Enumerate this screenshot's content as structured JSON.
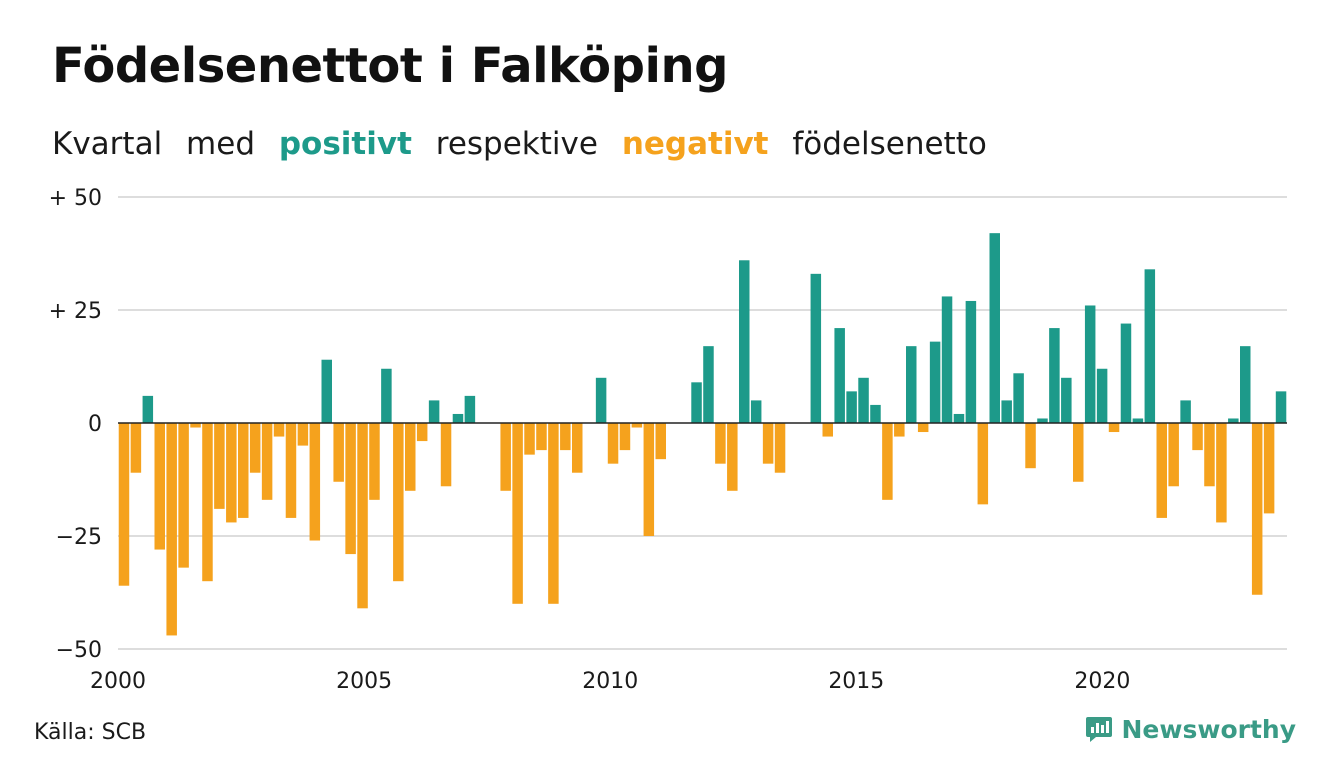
{
  "title": "Födelsenettot i Falköping",
  "subtitle": {
    "w1": "Kvartal",
    "w2": "med",
    "positive": "positivt",
    "w3": "respektive",
    "negative": "negativt",
    "w4": "födelsenetto"
  },
  "source": "Källa: SCB",
  "brand": {
    "name": "Newsworthy",
    "icon": "newsworthy-logo-icon"
  },
  "colors": {
    "positive": "#1d9a8a",
    "negative": "#f5a21d",
    "grid": "#dddddd",
    "axis": "#222222",
    "brand": "#3a9b86"
  },
  "chart_data": {
    "type": "bar",
    "title": "Födelsenettot i Falköping",
    "xlabel": "",
    "ylabel": "",
    "ylim": [
      -50,
      50
    ],
    "yticks": [
      {
        "value": 50,
        "label": "+ 50"
      },
      {
        "value": 25,
        "label": "+ 25"
      },
      {
        "value": 0,
        "label": "0"
      },
      {
        "value": -25,
        "label": "−25"
      },
      {
        "value": -50,
        "label": "−50"
      }
    ],
    "xlim": [
      2000,
      2023.75
    ],
    "xticks": [
      {
        "value": 2000,
        "label": "2000"
      },
      {
        "value": 2005,
        "label": "2005"
      },
      {
        "value": 2010,
        "label": "2010"
      },
      {
        "value": 2015,
        "label": "2015"
      },
      {
        "value": 2020,
        "label": "2020"
      }
    ],
    "grid": true,
    "start_year": 2000,
    "periods_per_year": 4,
    "values": [
      -36,
      -11,
      6,
      -28,
      -47,
      -32,
      -1,
      -35,
      -19,
      -22,
      -21,
      -11,
      -17,
      -3,
      -21,
      -5,
      -26,
      14,
      -13,
      -29,
      -41,
      -17,
      12,
      -35,
      -15,
      -4,
      5,
      -14,
      2,
      6,
      0,
      0,
      -15,
      -40,
      -7,
      -6,
      -40,
      -6,
      -11,
      0,
      10,
      -9,
      -6,
      -1,
      -25,
      -8,
      0,
      0,
      9,
      17,
      -9,
      -15,
      36,
      5,
      -9,
      -11,
      0,
      0,
      33,
      -3,
      21,
      7,
      10,
      4,
      -17,
      -3,
      17,
      -2,
      18,
      28,
      2,
      27,
      -18,
      42,
      5,
      11,
      -10,
      1,
      21,
      10,
      -13,
      26,
      12,
      -2,
      22,
      1,
      34,
      -21,
      -14,
      5,
      -6,
      -14,
      -22,
      1,
      17,
      -38,
      -20,
      7
    ]
  }
}
